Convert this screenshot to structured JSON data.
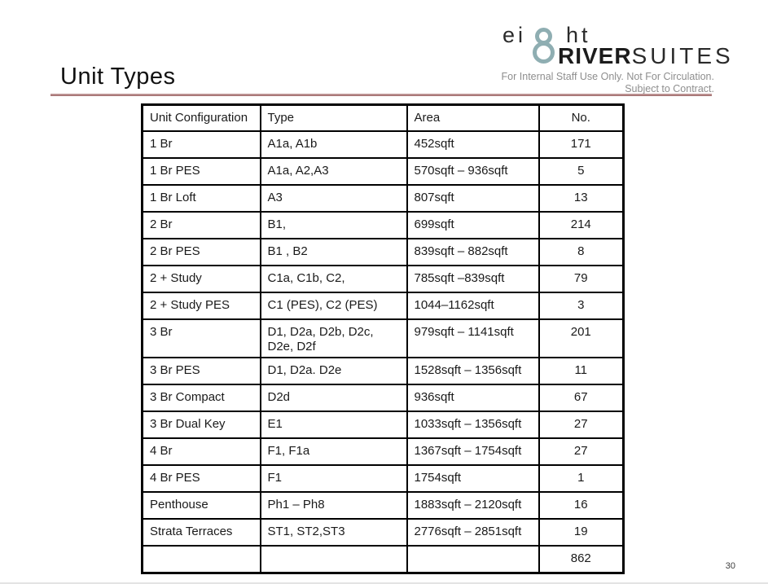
{
  "slide": {
    "title": "Unit Types",
    "page_number": "30"
  },
  "logo": {
    "word_top_left": "ei",
    "word_top_right": "ht",
    "word_bottom_bold": "RIVER",
    "word_bottom_light": "SUITES",
    "eight_icon": "figure-eight-rings-icon",
    "eight_color": "#8FAEB2",
    "disclaimer_line1": "For  Internal Staff Use Only. Not For Circulation.",
    "disclaimer_line2": "Subject to Contract."
  },
  "divider": {
    "color_light": "#C9A5A5",
    "color_dark": "#9E6868"
  },
  "table": {
    "headers": [
      "Unit Configuration",
      "Type",
      "Area",
      "No."
    ],
    "rows": [
      [
        "1 Br",
        "A1a, A1b",
        "452sqft",
        "171"
      ],
      [
        "1 Br PES",
        "A1a, A2,A3",
        "570sqft – 936sqft",
        "5"
      ],
      [
        "1 Br Loft",
        "A3",
        "807sqft",
        "13"
      ],
      [
        "2 Br",
        "B1,",
        "699sqft",
        "214"
      ],
      [
        "2 Br PES",
        "B1 , B2",
        "839sqft – 882sqft",
        "8"
      ],
      [
        "2 + Study",
        "C1a, C1b, C2,",
        "785sqft –839sqft",
        "79"
      ],
      [
        "2 + Study PES",
        "C1 (PES), C2 (PES)",
        "1044–1162sqft",
        "3"
      ],
      [
        "3 Br",
        "D1, D2a, D2b, D2c, D2e, D2f",
        "979sqft – 1141sqft",
        "201"
      ],
      [
        "3 Br PES",
        "D1, D2a. D2e",
        "1528sqft – 1356sqft",
        "11"
      ],
      [
        "3 Br Compact",
        "D2d",
        "936sqft",
        "67"
      ],
      [
        "3 Br Dual Key",
        "E1",
        "1033sqft – 1356sqft",
        "27"
      ],
      [
        "4 Br",
        "F1, F1a",
        "1367sqft – 1754sqft",
        "27"
      ],
      [
        "4 Br PES",
        "F1",
        "1754sqft",
        "1"
      ],
      [
        "Penthouse",
        "Ph1 – Ph8",
        "1883sqft – 2120sqft",
        "16"
      ],
      [
        "Strata Terraces",
        "ST1, ST2,ST3",
        "2776sqft – 2851sqft",
        "19"
      ],
      [
        "",
        "",
        "",
        "862"
      ]
    ],
    "total_units": "862"
  }
}
